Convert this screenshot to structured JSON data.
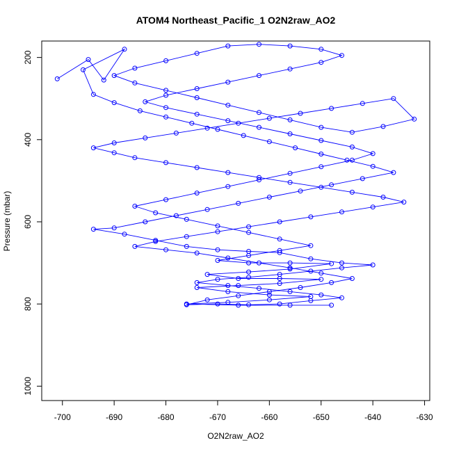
{
  "chart_data": {
    "type": "scatter",
    "title": "ATOM4 Northeast_Pacific_1 O2N2raw_AO2",
    "xlabel": "O2N2raw_AO2",
    "ylabel": "Pressure (mbar)",
    "xlim": [
      -704,
      -629
    ],
    "ylim": [
      1035,
      160
    ],
    "y_reversed": true,
    "grid": false,
    "x_ticks": [
      -700,
      -690,
      -680,
      -670,
      -660,
      -650,
      -640,
      -630
    ],
    "y_ticks": [
      200,
      400,
      600,
      800,
      1000
    ],
    "series": [
      {
        "color": "#0000ff",
        "marker": "open-circle",
        "connected": true,
        "points": [
          [
            -701,
            252
          ],
          [
            -695,
            205
          ],
          [
            -692,
            255
          ],
          [
            -688,
            180
          ],
          [
            -696,
            230
          ],
          [
            -694,
            290
          ],
          [
            -690,
            310
          ],
          [
            -685,
            330
          ],
          [
            -680,
            345
          ],
          [
            -675,
            360
          ],
          [
            -670,
            375
          ],
          [
            -665,
            390
          ],
          [
            -660,
            405
          ],
          [
            -655,
            420
          ],
          [
            -650,
            435
          ],
          [
            -645,
            450
          ],
          [
            -640,
            465
          ],
          [
            -636,
            480
          ],
          [
            -642,
            495
          ],
          [
            -648,
            510
          ],
          [
            -654,
            525
          ],
          [
            -660,
            540
          ],
          [
            -666,
            555
          ],
          [
            -672,
            570
          ],
          [
            -678,
            585
          ],
          [
            -684,
            600
          ],
          [
            -690,
            615
          ],
          [
            -694,
            618
          ],
          [
            -688,
            630
          ],
          [
            -682,
            645
          ],
          [
            -676,
            660
          ],
          [
            -670,
            668
          ],
          [
            -664,
            672
          ],
          [
            -658,
            675
          ],
          [
            -652,
            690
          ],
          [
            -646,
            700
          ],
          [
            -640,
            705
          ],
          [
            -646,
            712
          ],
          [
            -652,
            720
          ],
          [
            -658,
            728
          ],
          [
            -664,
            735
          ],
          [
            -670,
            740
          ],
          [
            -674,
            748
          ],
          [
            -668,
            755
          ],
          [
            -662,
            762
          ],
          [
            -656,
            770
          ],
          [
            -650,
            778
          ],
          [
            -646,
            785
          ],
          [
            -652,
            792
          ],
          [
            -658,
            800
          ],
          [
            -664,
            802
          ],
          [
            -670,
            800
          ],
          [
            -676,
            802
          ],
          [
            -672,
            790
          ],
          [
            -666,
            780
          ],
          [
            -660,
            770
          ],
          [
            -654,
            760
          ],
          [
            -648,
            748
          ],
          [
            -644,
            738
          ],
          [
            -650,
            725
          ],
          [
            -656,
            712
          ],
          [
            -662,
            700
          ],
          [
            -668,
            688
          ],
          [
            -674,
            676
          ],
          [
            -680,
            668
          ],
          [
            -686,
            660
          ],
          [
            -682,
            648
          ],
          [
            -676,
            636
          ],
          [
            -670,
            624
          ],
          [
            -664,
            612
          ],
          [
            -658,
            600
          ],
          [
            -652,
            588
          ],
          [
            -646,
            576
          ],
          [
            -640,
            564
          ],
          [
            -634,
            552
          ],
          [
            -638,
            540
          ],
          [
            -644,
            528
          ],
          [
            -650,
            516
          ],
          [
            -656,
            504
          ],
          [
            -662,
            492
          ],
          [
            -668,
            480
          ],
          [
            -674,
            468
          ],
          [
            -680,
            456
          ],
          [
            -686,
            444
          ],
          [
            -690,
            432
          ],
          [
            -694,
            420
          ],
          [
            -690,
            408
          ],
          [
            -684,
            396
          ],
          [
            -678,
            384
          ],
          [
            -672,
            372
          ],
          [
            -666,
            360
          ],
          [
            -660,
            348
          ],
          [
            -654,
            336
          ],
          [
            -648,
            324
          ],
          [
            -642,
            312
          ],
          [
            -636,
            300
          ],
          [
            -632,
            350
          ],
          [
            -638,
            368
          ],
          [
            -644,
            382
          ],
          [
            -650,
            370
          ],
          [
            -656,
            352
          ],
          [
            -662,
            334
          ],
          [
            -668,
            316
          ],
          [
            -674,
            298
          ],
          [
            -680,
            280
          ],
          [
            -686,
            262
          ],
          [
            -690,
            244
          ],
          [
            -686,
            226
          ],
          [
            -680,
            208
          ],
          [
            -674,
            190
          ],
          [
            -668,
            172
          ],
          [
            -662,
            168
          ],
          [
            -656,
            172
          ],
          [
            -650,
            180
          ],
          [
            -646,
            195
          ],
          [
            -650,
            212
          ],
          [
            -656,
            228
          ],
          [
            -662,
            244
          ],
          [
            -668,
            260
          ],
          [
            -674,
            276
          ],
          [
            -680,
            292
          ],
          [
            -684,
            308
          ],
          [
            -680,
            322
          ],
          [
            -674,
            338
          ],
          [
            -668,
            354
          ],
          [
            -662,
            370
          ],
          [
            -656,
            386
          ],
          [
            -650,
            402
          ],
          [
            -644,
            418
          ],
          [
            -640,
            434
          ],
          [
            -644,
            450
          ],
          [
            -650,
            466
          ],
          [
            -656,
            482
          ],
          [
            -662,
            498
          ],
          [
            -668,
            514
          ],
          [
            -674,
            530
          ],
          [
            -680,
            546
          ],
          [
            -686,
            562
          ],
          [
            -682,
            578
          ],
          [
            -676,
            594
          ],
          [
            -670,
            610
          ],
          [
            -664,
            626
          ],
          [
            -658,
            642
          ],
          [
            -652,
            658
          ],
          [
            -658,
            670
          ],
          [
            -664,
            682
          ],
          [
            -670,
            694
          ],
          [
            -664,
            700
          ],
          [
            -656,
            700
          ],
          [
            -648,
            702
          ],
          [
            -656,
            715
          ],
          [
            -664,
            722
          ],
          [
            -672,
            728
          ],
          [
            -666,
            738
          ],
          [
            -658,
            738
          ],
          [
            -650,
            740
          ],
          [
            -658,
            750
          ],
          [
            -666,
            755
          ],
          [
            -674,
            760
          ],
          [
            -668,
            770
          ],
          [
            -660,
            778
          ],
          [
            -652,
            782
          ],
          [
            -660,
            790
          ],
          [
            -668,
            796
          ],
          [
            -676,
            800
          ],
          [
            -666,
            803
          ],
          [
            -656,
            803
          ],
          [
            -648,
            803
          ]
        ]
      }
    ]
  }
}
